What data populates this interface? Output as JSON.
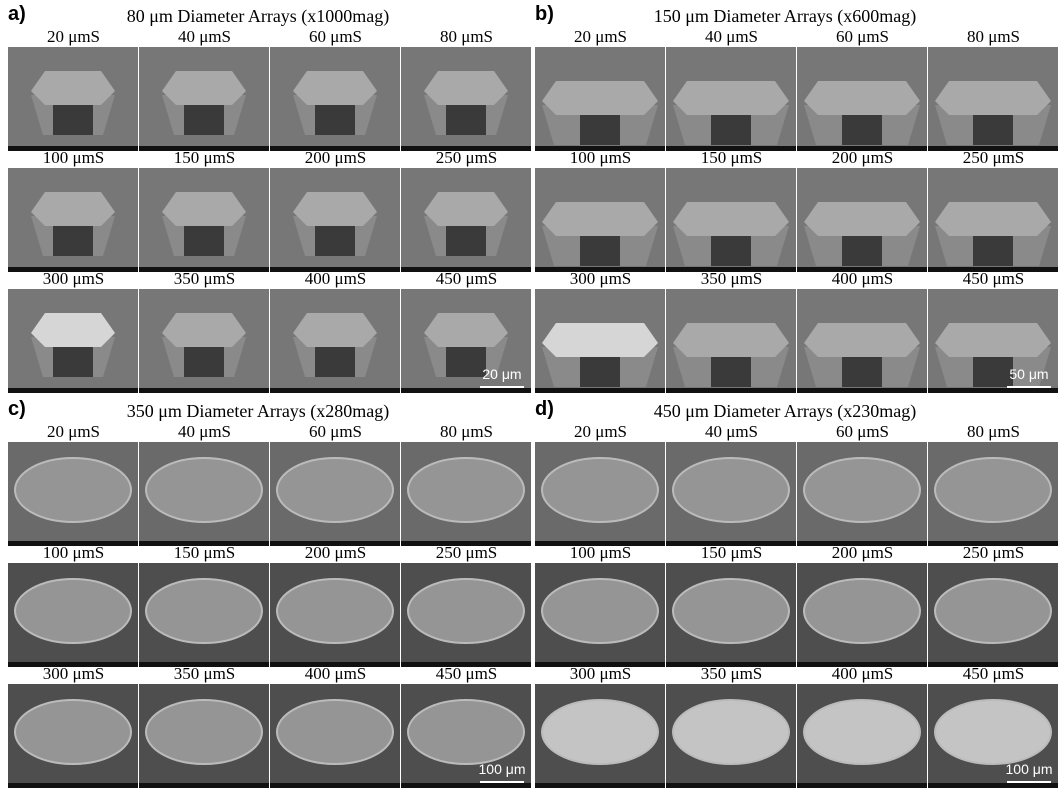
{
  "panels": [
    {
      "label": "a)",
      "title": "80 μm Diameter Arrays (x1000mag)",
      "cells": [
        "20 μmS",
        "40 μmS",
        "60 μmS",
        "80 μmS",
        "100 μmS",
        "150 μmS",
        "200 μmS",
        "250 μmS",
        "300 μmS",
        "350 μmS",
        "400 μmS",
        "450 μmS"
      ],
      "scale_bar": "20 μm"
    },
    {
      "label": "b)",
      "title": "150 μm Diameter Arrays (x600mag)",
      "cells": [
        "20 μmS",
        "40 μmS",
        "60 μmS",
        "80 μmS",
        "100 μmS",
        "150 μmS",
        "200 μmS",
        "250 μmS",
        "300 μmS",
        "350 μmS",
        "400 μmS",
        "450 μmS"
      ],
      "scale_bar": "50 μm"
    },
    {
      "label": "c)",
      "title": "350 μm Diameter Arrays (x280mag)",
      "cells": [
        "20 μmS",
        "40 μmS",
        "60 μmS",
        "80 μmS",
        "100 μmS",
        "150 μmS",
        "200 μmS",
        "250 μmS",
        "300 μmS",
        "350 μmS",
        "400 μmS",
        "450 μmS"
      ],
      "scale_bar": "100 μm"
    },
    {
      "label": "d)",
      "title": "450 μm Diameter Arrays (x230mag)",
      "cells": [
        "20 μmS",
        "40 μmS",
        "60 μmS",
        "80 μmS",
        "100 μmS",
        "150 μmS",
        "200 μmS",
        "250 μmS",
        "300 μmS",
        "350 μmS",
        "400 μmS",
        "450 μmS"
      ],
      "scale_bar": "100 μm"
    }
  ]
}
